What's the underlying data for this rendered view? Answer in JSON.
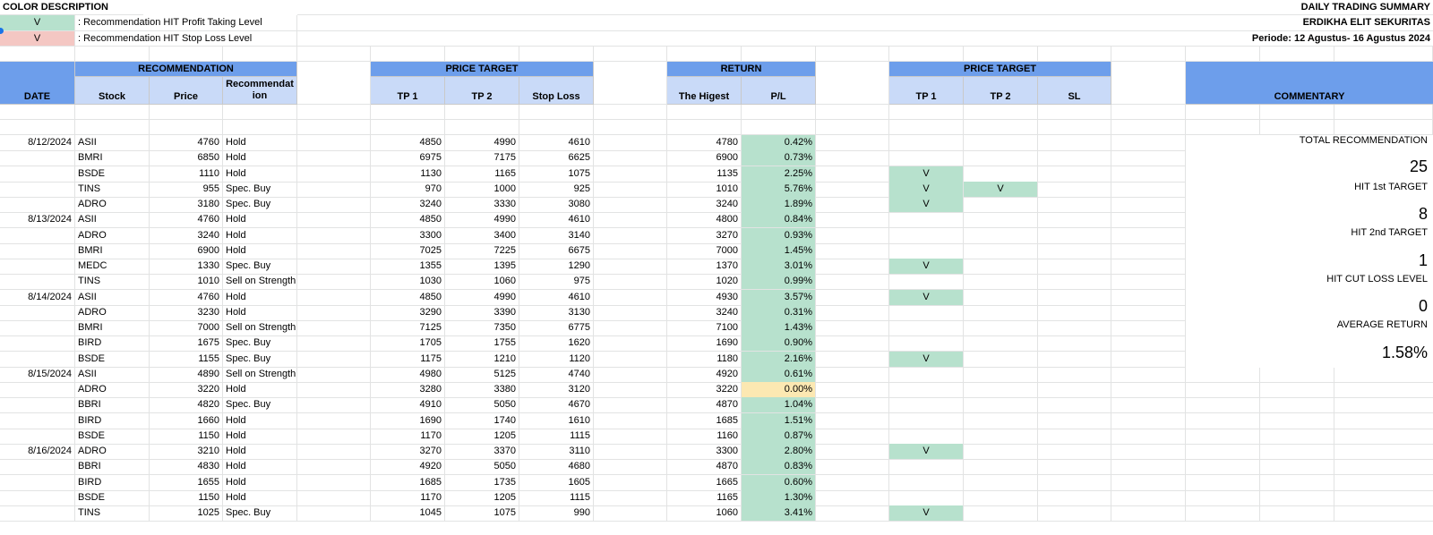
{
  "legend": {
    "title": "COLOR DESCRIPTION",
    "items": [
      {
        "mark": "V",
        "text": ": Recommendation HIT Profit Taking Level",
        "color": "#b7e1cd"
      },
      {
        "mark": "V",
        "text": ": Recommendation HIT Stop Loss Level",
        "color": "#f4c7c3"
      }
    ]
  },
  "header_right": {
    "title": "DAILY TRADING SUMMARY",
    "company": "ERDIKHA ELIT SEKURITAS",
    "period": "Periode:  12 Agustus- 16 Agustus 2024"
  },
  "groups": {
    "recommendation": "RECOMMENDATION",
    "price_target": "PRICE TARGET",
    "return": "RETURN",
    "price_target2": "PRICE TARGET",
    "commentary": "COMMENTARY"
  },
  "columns": {
    "date": "DATE",
    "stock": "Stock",
    "price": "Price",
    "recommendation": "Recommendat ion",
    "tp1": "TP 1",
    "tp2": "TP 2",
    "stop_loss": "Stop Loss",
    "highest": "The Higest",
    "pl": "P/L",
    "hit_tp1": "TP 1",
    "hit_tp2": "TP 2",
    "hit_sl": "SL"
  },
  "rows": [
    {
      "date": "8/12/2024",
      "stock": "ASII",
      "price": "4760",
      "rec": "Hold",
      "tp1": "4850",
      "tp2": "4990",
      "sl": "4610",
      "high": "4780",
      "pl": "0.42%",
      "pl_color": "green",
      "h1": "",
      "h2": "",
      "hs": ""
    },
    {
      "date": "",
      "stock": "BMRI",
      "price": "6850",
      "rec": "Hold",
      "tp1": "6975",
      "tp2": "7175",
      "sl": "6625",
      "high": "6900",
      "pl": "0.73%",
      "pl_color": "green",
      "h1": "",
      "h2": "",
      "hs": ""
    },
    {
      "date": "",
      "stock": "BSDE",
      "price": "1110",
      "rec": "Hold",
      "tp1": "1130",
      "tp2": "1165",
      "sl": "1075",
      "high": "1135",
      "pl": "2.25%",
      "pl_color": "green",
      "h1": "V",
      "h2": "",
      "hs": ""
    },
    {
      "date": "",
      "stock": "TINS",
      "price": "955",
      "rec": "Spec. Buy",
      "tp1": "970",
      "tp2": "1000",
      "sl": "925",
      "high": "1010",
      "pl": "5.76%",
      "pl_color": "green",
      "h1": "V",
      "h2": "V",
      "hs": ""
    },
    {
      "date": "",
      "stock": "ADRO",
      "price": "3180",
      "rec": "Spec. Buy",
      "tp1": "3240",
      "tp2": "3330",
      "sl": "3080",
      "high": "3240",
      "pl": "1.89%",
      "pl_color": "green",
      "h1": "V",
      "h2": "",
      "hs": ""
    },
    {
      "date": "8/13/2024",
      "stock": "ASII",
      "price": "4760",
      "rec": "Hold",
      "tp1": "4850",
      "tp2": "4990",
      "sl": "4610",
      "high": "4800",
      "pl": "0.84%",
      "pl_color": "green",
      "h1": "",
      "h2": "",
      "hs": ""
    },
    {
      "date": "",
      "stock": "ADRO",
      "price": "3240",
      "rec": "Hold",
      "tp1": "3300",
      "tp2": "3400",
      "sl": "3140",
      "high": "3270",
      "pl": "0.93%",
      "pl_color": "green",
      "h1": "",
      "h2": "",
      "hs": ""
    },
    {
      "date": "",
      "stock": "BMRI",
      "price": "6900",
      "rec": "Hold",
      "tp1": "7025",
      "tp2": "7225",
      "sl": "6675",
      "high": "7000",
      "pl": "1.45%",
      "pl_color": "green",
      "h1": "",
      "h2": "",
      "hs": ""
    },
    {
      "date": "",
      "stock": "MEDC",
      "price": "1330",
      "rec": "Spec. Buy",
      "tp1": "1355",
      "tp2": "1395",
      "sl": "1290",
      "high": "1370",
      "pl": "3.01%",
      "pl_color": "green",
      "h1": "V",
      "h2": "",
      "hs": ""
    },
    {
      "date": "",
      "stock": "TINS",
      "price": "1010",
      "rec": "Sell on Strength",
      "tp1": "1030",
      "tp2": "1060",
      "sl": "975",
      "high": "1020",
      "pl": "0.99%",
      "pl_color": "green",
      "h1": "",
      "h2": "",
      "hs": ""
    },
    {
      "date": "8/14/2024",
      "stock": "ASII",
      "price": "4760",
      "rec": "Hold",
      "tp1": "4850",
      "tp2": "4990",
      "sl": "4610",
      "high": "4930",
      "pl": "3.57%",
      "pl_color": "green",
      "h1": "V",
      "h2": "",
      "hs": ""
    },
    {
      "date": "",
      "stock": "ADRO",
      "price": "3230",
      "rec": "Hold",
      "tp1": "3290",
      "tp2": "3390",
      "sl": "3130",
      "high": "3240",
      "pl": "0.31%",
      "pl_color": "green",
      "h1": "",
      "h2": "",
      "hs": ""
    },
    {
      "date": "",
      "stock": "BMRI",
      "price": "7000",
      "rec": "Sell on Strength",
      "tp1": "7125",
      "tp2": "7350",
      "sl": "6775",
      "high": "7100",
      "pl": "1.43%",
      "pl_color": "green",
      "h1": "",
      "h2": "",
      "hs": ""
    },
    {
      "date": "",
      "stock": "BIRD",
      "price": "1675",
      "rec": "Spec. Buy",
      "tp1": "1705",
      "tp2": "1755",
      "sl": "1620",
      "high": "1690",
      "pl": "0.90%",
      "pl_color": "green",
      "h1": "",
      "h2": "",
      "hs": ""
    },
    {
      "date": "",
      "stock": "BSDE",
      "price": "1155",
      "rec": "Spec. Buy",
      "tp1": "1175",
      "tp2": "1210",
      "sl": "1120",
      "high": "1180",
      "pl": "2.16%",
      "pl_color": "green",
      "h1": "V",
      "h2": "",
      "hs": ""
    },
    {
      "date": "8/15/2024",
      "stock": "ASII",
      "price": "4890",
      "rec": "Sell on Strength",
      "tp1": "4980",
      "tp2": "5125",
      "sl": "4740",
      "high": "4920",
      "pl": "0.61%",
      "pl_color": "green",
      "h1": "",
      "h2": "",
      "hs": ""
    },
    {
      "date": "",
      "stock": "ADRO",
      "price": "3220",
      "rec": "Hold",
      "tp1": "3280",
      "tp2": "3380",
      "sl": "3120",
      "high": "3220",
      "pl": "0.00%",
      "pl_color": "yellow",
      "h1": "",
      "h2": "",
      "hs": ""
    },
    {
      "date": "",
      "stock": "BBRI",
      "price": "4820",
      "rec": "Spec. Buy",
      "tp1": "4910",
      "tp2": "5050",
      "sl": "4670",
      "high": "4870",
      "pl": "1.04%",
      "pl_color": "green",
      "h1": "",
      "h2": "",
      "hs": ""
    },
    {
      "date": "",
      "stock": "BIRD",
      "price": "1660",
      "rec": "Hold",
      "tp1": "1690",
      "tp2": "1740",
      "sl": "1610",
      "high": "1685",
      "pl": "1.51%",
      "pl_color": "green",
      "h1": "",
      "h2": "",
      "hs": ""
    },
    {
      "date": "",
      "stock": "BSDE",
      "price": "1150",
      "rec": "Hold",
      "tp1": "1170",
      "tp2": "1205",
      "sl": "1115",
      "high": "1160",
      "pl": "0.87%",
      "pl_color": "green",
      "h1": "",
      "h2": "",
      "hs": ""
    },
    {
      "date": "8/16/2024",
      "stock": "ADRO",
      "price": "3210",
      "rec": "Hold",
      "tp1": "3270",
      "tp2": "3370",
      "sl": "3110",
      "high": "3300",
      "pl": "2.80%",
      "pl_color": "green",
      "h1": "V",
      "h2": "",
      "hs": ""
    },
    {
      "date": "",
      "stock": "BBRI",
      "price": "4830",
      "rec": "Hold",
      "tp1": "4920",
      "tp2": "5050",
      "sl": "4680",
      "high": "4870",
      "pl": "0.83%",
      "pl_color": "green",
      "h1": "",
      "h2": "",
      "hs": ""
    },
    {
      "date": "",
      "stock": "BIRD",
      "price": "1655",
      "rec": "Hold",
      "tp1": "1685",
      "tp2": "1735",
      "sl": "1605",
      "high": "1665",
      "pl": "0.60%",
      "pl_color": "green",
      "h1": "",
      "h2": "",
      "hs": ""
    },
    {
      "date": "",
      "stock": "BSDE",
      "price": "1150",
      "rec": "Hold",
      "tp1": "1170",
      "tp2": "1205",
      "sl": "1115",
      "high": "1165",
      "pl": "1.30%",
      "pl_color": "green",
      "h1": "",
      "h2": "",
      "hs": ""
    },
    {
      "date": "",
      "stock": "TINS",
      "price": "1025",
      "rec": "Spec. Buy",
      "tp1": "1045",
      "tp2": "1075",
      "sl": "990",
      "high": "1060",
      "pl": "3.41%",
      "pl_color": "green",
      "h1": "V",
      "h2": "",
      "hs": ""
    }
  ],
  "summary": {
    "total_label": "TOTAL RECOMMENDATION",
    "total_value": "25",
    "hit1_label": "HIT 1st TARGET",
    "hit1_value": "8",
    "hit2_label": "HIT 2nd TARGET",
    "hit2_value": "1",
    "cutloss_label": "HIT CUT LOSS LEVEL",
    "cutloss_value": "0",
    "avg_label": "AVERAGE RETURN",
    "avg_value": "1.58%"
  },
  "colors": {
    "header_dark": "#6d9eeb",
    "header_light": "#c9daf8",
    "hit_green": "#b7e1cd",
    "stoploss_pink": "#f4c7c3",
    "neutral_yellow": "#fce8b2"
  }
}
